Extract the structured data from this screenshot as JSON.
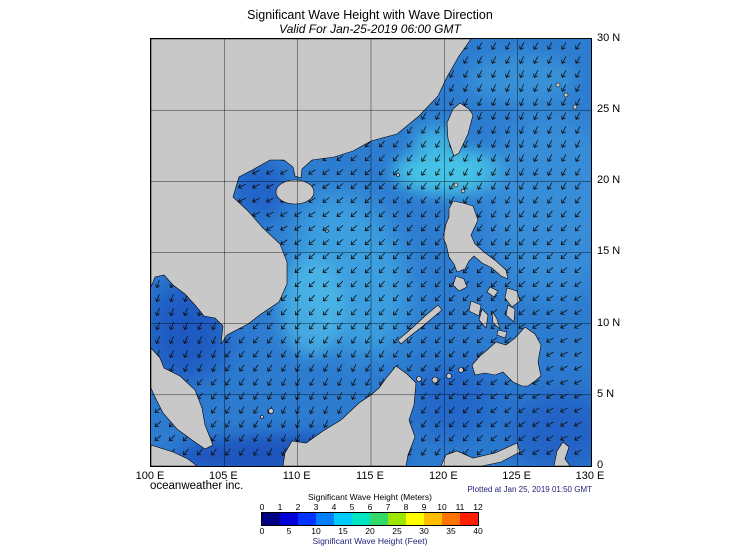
{
  "title": "Significant Wave Height with Wave Direction",
  "subtitle": "Valid For Jan-25-2019 06:00 GMT",
  "footer": {
    "credit": "oceanweather inc.",
    "plotted": "Plotted at Jan 25, 2019 01:50 GMT"
  },
  "map": {
    "x_ticks": [
      "100 E",
      "105 E",
      "110 E",
      "115 E",
      "120 E",
      "125 E",
      "130 E"
    ],
    "y_ticks": [
      "30 N",
      "25 N",
      "20 N",
      "15 N",
      "10 N",
      "5 N",
      "0"
    ],
    "grid_interval_deg": 5,
    "region": "South China Sea / Philippine Sea",
    "ocean_base_color": "#2d7cd0",
    "land_color": "#c8c8c8",
    "arrow_direction": "southwest",
    "arrow_color": "#101010"
  },
  "legend": {
    "meters_title": "Significant Wave Height (Meters)",
    "feet_title": "Significant Wave Height (Feet)",
    "meters_ticks": [
      "0",
      "1",
      "2",
      "3",
      "4",
      "5",
      "6",
      "7",
      "8",
      "9",
      "10",
      "11",
      "12"
    ],
    "feet_ticks": [
      "0",
      "5",
      "10",
      "15",
      "20",
      "25",
      "30",
      "35",
      "40"
    ],
    "colors": [
      "#000080",
      "#0000d9",
      "#0033ff",
      "#0080ff",
      "#00ccff",
      "#00e6c3",
      "#33d966",
      "#9ee500",
      "#ffff00",
      "#ffbf00",
      "#ff7300",
      "#ff1e00"
    ]
  }
}
